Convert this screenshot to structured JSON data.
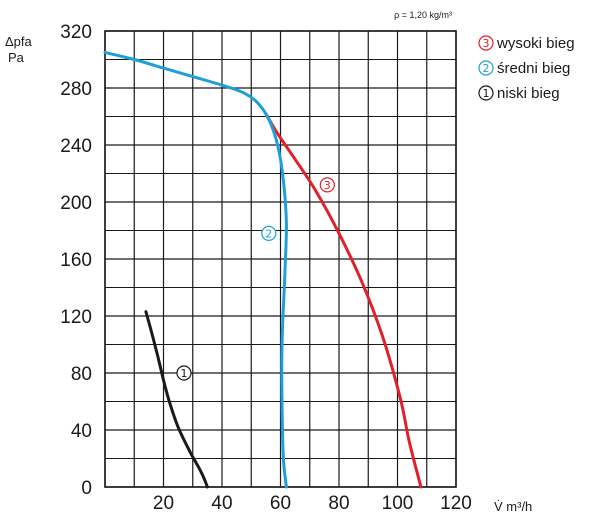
{
  "chart_data": {
    "type": "line",
    "xlabel": "V̇ m³/h",
    "ylabel_top": "Δpfa",
    "ylabel_unit": "Pa",
    "density_note": "ρ = 1,20 kg/m³",
    "xlim": [
      0,
      120
    ],
    "ylim": [
      0,
      320
    ],
    "x_ticks": [
      "20",
      "40",
      "60",
      "80",
      "100",
      "120"
    ],
    "y_ticks": [
      "0",
      "40",
      "80",
      "120",
      "160",
      "200",
      "240",
      "280",
      "320"
    ],
    "grid": true,
    "legend_position": "right",
    "series": [
      {
        "id": "s3",
        "name": "wysoki bieg",
        "marker": "3",
        "color": "#e0202a",
        "points": [
          [
            55,
            262
          ],
          [
            59,
            248
          ],
          [
            65,
            230
          ],
          [
            72,
            208
          ],
          [
            80,
            178
          ],
          [
            88,
            143
          ],
          [
            95,
            105
          ],
          [
            101,
            62
          ],
          [
            104,
            32
          ],
          [
            108,
            0
          ]
        ]
      },
      {
        "id": "s2",
        "name": "średni bieg",
        "marker": "2",
        "color": "#1e9fd8",
        "points": [
          [
            0,
            305
          ],
          [
            10,
            300
          ],
          [
            20,
            294
          ],
          [
            30,
            288
          ],
          [
            40,
            282
          ],
          [
            47,
            277
          ],
          [
            52,
            270
          ],
          [
            56,
            258
          ],
          [
            59,
            240
          ],
          [
            61,
            215
          ],
          [
            62,
            185
          ],
          [
            61.5,
            150
          ],
          [
            60.5,
            100
          ],
          [
            60.5,
            60
          ],
          [
            61,
            20
          ],
          [
            62,
            0
          ]
        ]
      },
      {
        "id": "s1",
        "name": "niski bieg",
        "marker": "1",
        "color": "#1a1a1a",
        "points": [
          [
            14,
            123
          ],
          [
            16,
            108
          ],
          [
            18,
            92
          ],
          [
            20,
            75
          ],
          [
            22,
            60
          ],
          [
            25,
            42
          ],
          [
            29,
            25
          ],
          [
            33,
            10
          ],
          [
            35,
            0
          ]
        ]
      }
    ],
    "curve_labels": [
      {
        "series": "s3",
        "x": 76,
        "y": 212
      },
      {
        "series": "s2",
        "x": 56,
        "y": 178
      },
      {
        "series": "s1",
        "x": 27,
        "y": 80
      }
    ]
  },
  "legend": [
    {
      "marker": "3",
      "label": "wysoki bieg",
      "color": "#e0202a"
    },
    {
      "marker": "2",
      "label": "średni bieg",
      "color": "#1e9fd8"
    },
    {
      "marker": "1",
      "label": "niski bieg",
      "color": "#1a1a1a"
    }
  ]
}
